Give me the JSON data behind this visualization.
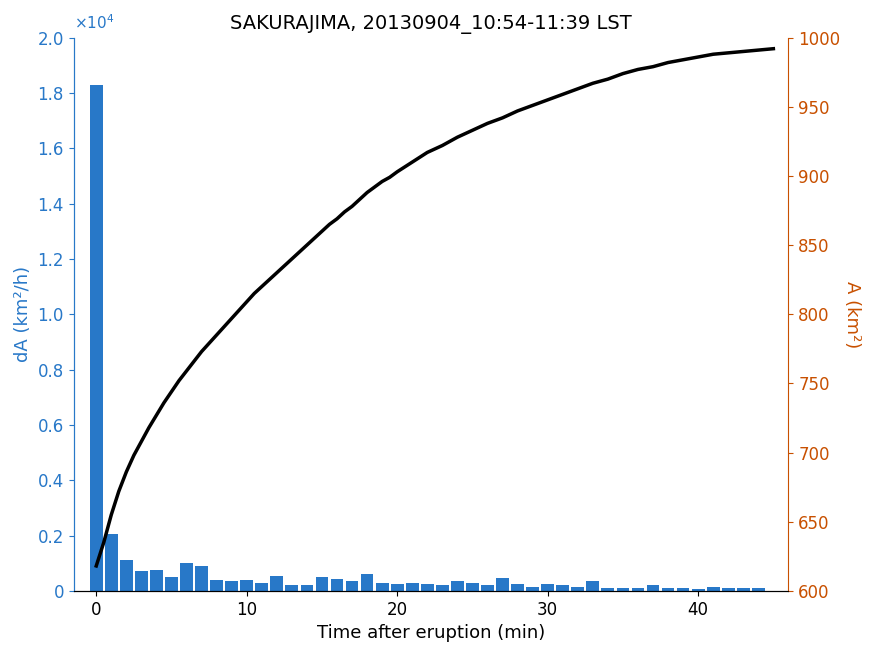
{
  "title": "SAKURAJIMA, 20130904_10:54-11:39 LST",
  "xlabel": "Time after eruption (min)",
  "ylabel_left": "dA (km²/h)",
  "ylabel_right": "A (km²)",
  "bar_color": "#2878c8",
  "line_color": "#000000",
  "left_axis_color": "#2878c8",
  "right_axis_color": "#c85000",
  "bar_times": [
    0,
    1,
    2,
    3,
    4,
    5,
    6,
    7,
    8,
    9,
    10,
    11,
    12,
    13,
    14,
    15,
    16,
    17,
    18,
    19,
    20,
    21,
    22,
    23,
    24,
    25,
    26,
    27,
    28,
    29,
    30,
    31,
    32,
    33,
    34,
    35,
    36,
    37,
    38,
    39,
    40,
    41,
    42,
    43,
    44
  ],
  "bar_heights": [
    18300,
    2050,
    1100,
    700,
    750,
    500,
    1000,
    900,
    400,
    350,
    400,
    280,
    550,
    200,
    200,
    500,
    430,
    350,
    600,
    280,
    230,
    300,
    250,
    200,
    350,
    280,
    200,
    450,
    250,
    130,
    250,
    200,
    150,
    350,
    100,
    100,
    100,
    200,
    100,
    100,
    50,
    150,
    100,
    100,
    100
  ],
  "line_times": [
    0,
    0.5,
    1,
    1.5,
    2,
    2.5,
    3,
    3.5,
    4,
    4.5,
    5,
    5.5,
    6,
    6.5,
    7,
    7.5,
    8,
    8.5,
    9,
    9.5,
    10,
    10.5,
    11,
    11.5,
    12,
    12.5,
    13,
    13.5,
    14,
    14.5,
    15,
    15.5,
    16,
    16.5,
    17,
    17.5,
    18,
    18.5,
    19,
    19.5,
    20,
    21,
    22,
    23,
    24,
    25,
    26,
    27,
    28,
    29,
    30,
    31,
    32,
    33,
    34,
    35,
    36,
    37,
    38,
    39,
    40,
    41,
    42,
    43,
    44,
    45
  ],
  "line_values": [
    618,
    635,
    655,
    672,
    686,
    698,
    708,
    718,
    727,
    736,
    744,
    752,
    759,
    766,
    773,
    779,
    785,
    791,
    797,
    803,
    809,
    815,
    820,
    825,
    830,
    835,
    840,
    845,
    850,
    855,
    860,
    865,
    869,
    874,
    878,
    883,
    888,
    892,
    896,
    899,
    903,
    910,
    917,
    922,
    928,
    933,
    938,
    942,
    947,
    951,
    955,
    959,
    963,
    967,
    970,
    974,
    977,
    979,
    982,
    984,
    986,
    988,
    989,
    990,
    991,
    992
  ],
  "xlim": [
    -1.5,
    46
  ],
  "ylim_left": [
    0,
    20000
  ],
  "ylim_right": [
    600,
    1000
  ],
  "xticks": [
    0,
    10,
    20,
    30,
    40
  ],
  "yticks_left": [
    0,
    0.2,
    0.4,
    0.6,
    0.8,
    1.0,
    1.2,
    1.4,
    1.6,
    1.8,
    2.0
  ],
  "yticks_right": [
    600,
    650,
    700,
    750,
    800,
    850,
    900,
    950,
    1000
  ],
  "title_fontsize": 14,
  "label_fontsize": 13,
  "tick_fontsize": 12
}
